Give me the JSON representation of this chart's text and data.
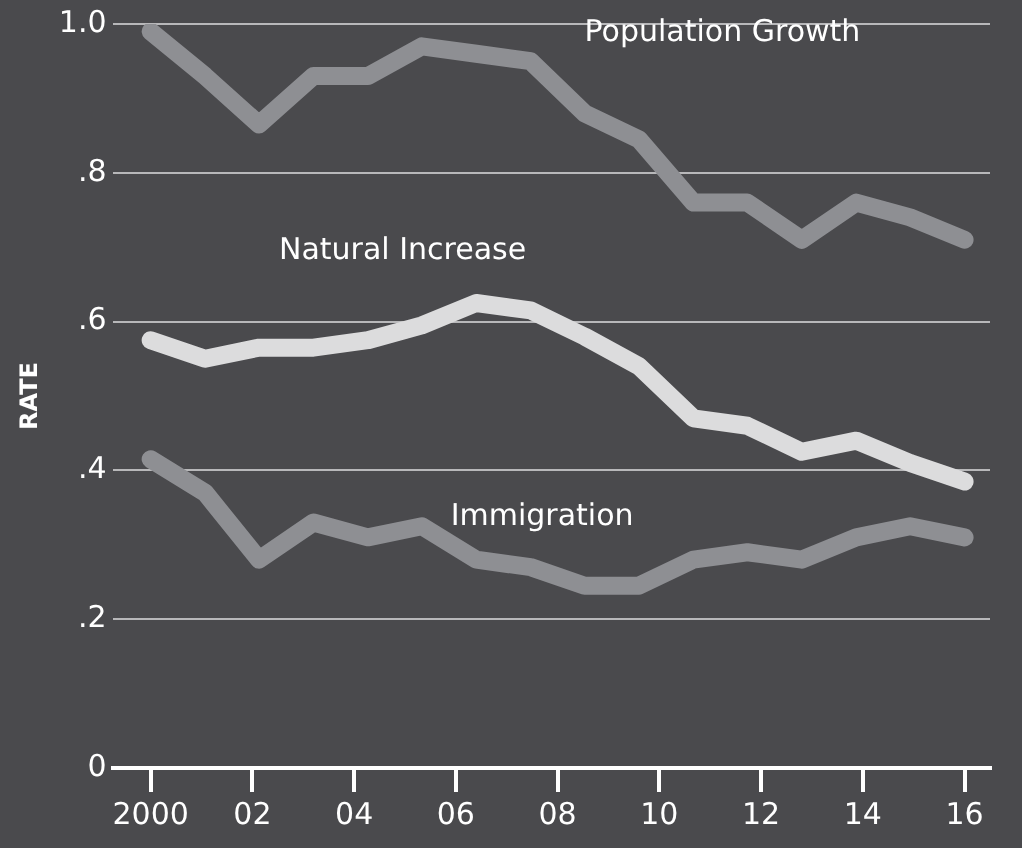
{
  "chart_data": {
    "type": "line",
    "ylabel": "RATE",
    "x": [
      2000,
      2001.07,
      2002.13,
      2003.2,
      2004.27,
      2005.33,
      2006.4,
      2007.47,
      2008.53,
      2009.6,
      2010.67,
      2011.73,
      2012.8,
      2013.87,
      2014.93,
      2016
    ],
    "xlim": [
      1999.25,
      2016.5
    ],
    "xticks": [
      {
        "value": 2000,
        "label": "2000"
      },
      {
        "value": 2002,
        "label": "02"
      },
      {
        "value": 2004,
        "label": "04"
      },
      {
        "value": 2006,
        "label": "06"
      },
      {
        "value": 2008,
        "label": "08"
      },
      {
        "value": 2010,
        "label": "10"
      },
      {
        "value": 2012,
        "label": "12"
      },
      {
        "value": 2014,
        "label": "14"
      },
      {
        "value": 2016,
        "label": "16"
      }
    ],
    "ylim": [
      0,
      1
    ],
    "yticks": [
      {
        "value": 0,
        "label": "0"
      },
      {
        "value": 0.2,
        "label": ".2"
      },
      {
        "value": 0.4,
        "label": ".4"
      },
      {
        "value": 0.6,
        "label": ".6"
      },
      {
        "value": 0.8,
        "label": ".8"
      },
      {
        "value": 1,
        "label": "1.0"
      }
    ],
    "grid": "y",
    "legend": false,
    "marker": "none",
    "line_style": "solid",
    "series": [
      {
        "name": "Population Growth",
        "color": "#8e8f93",
        "values": [
          0.99,
          0.93,
          0.865,
          0.93,
          0.93,
          0.97,
          0.96,
          0.95,
          0.88,
          0.845,
          0.76,
          0.76,
          0.71,
          0.76,
          0.74,
          0.71
        ]
      },
      {
        "name": "Natural Increase",
        "color": "#dcdcdd",
        "values": [
          0.575,
          0.55,
          0.565,
          0.565,
          0.575,
          0.595,
          0.625,
          0.615,
          0.58,
          0.54,
          0.47,
          0.46,
          0.425,
          0.44,
          0.41,
          0.385
        ]
      },
      {
        "name": "Immigration",
        "color": "#8e8f93",
        "values": [
          0.415,
          0.37,
          0.28,
          0.33,
          0.31,
          0.325,
          0.28,
          0.27,
          0.245,
          0.245,
          0.28,
          0.29,
          0.28,
          0.31,
          0.325,
          0.31
        ]
      }
    ]
  }
}
